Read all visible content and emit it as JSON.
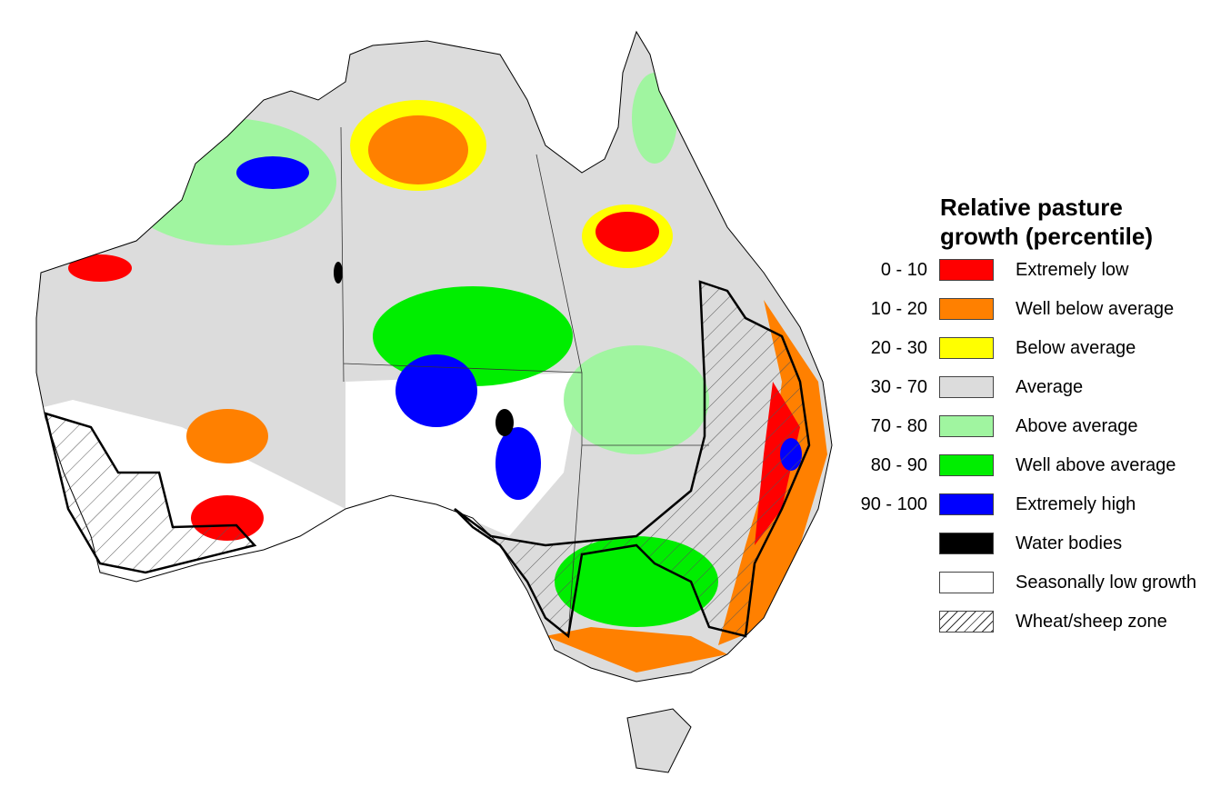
{
  "legend": {
    "title": "Relative pasture growth (percentile)",
    "items": [
      {
        "range": "0 - 10",
        "label": "Extremely low",
        "color": "#ff0000"
      },
      {
        "range": "10 - 20",
        "label": "Well below average",
        "color": "#ff8000"
      },
      {
        "range": "20 - 30",
        "label": "Below average",
        "color": "#ffff00"
      },
      {
        "range": "30 - 70",
        "label": "Average",
        "color": "#dcdcdc"
      },
      {
        "range": "70 - 80",
        "label": "Above average",
        "color": "#a0f5a0"
      },
      {
        "range": "80 - 90",
        "label": "Well above average",
        "color": "#00ee00"
      },
      {
        "range": "90 - 100",
        "label": "Extremely high",
        "color": "#0000ff"
      },
      {
        "label": "Water bodies",
        "color": "#000000"
      },
      {
        "label": "Seasonally low growth",
        "color": "#ffffff"
      },
      {
        "label": "Wheat/sheep zone"
      }
    ]
  }
}
